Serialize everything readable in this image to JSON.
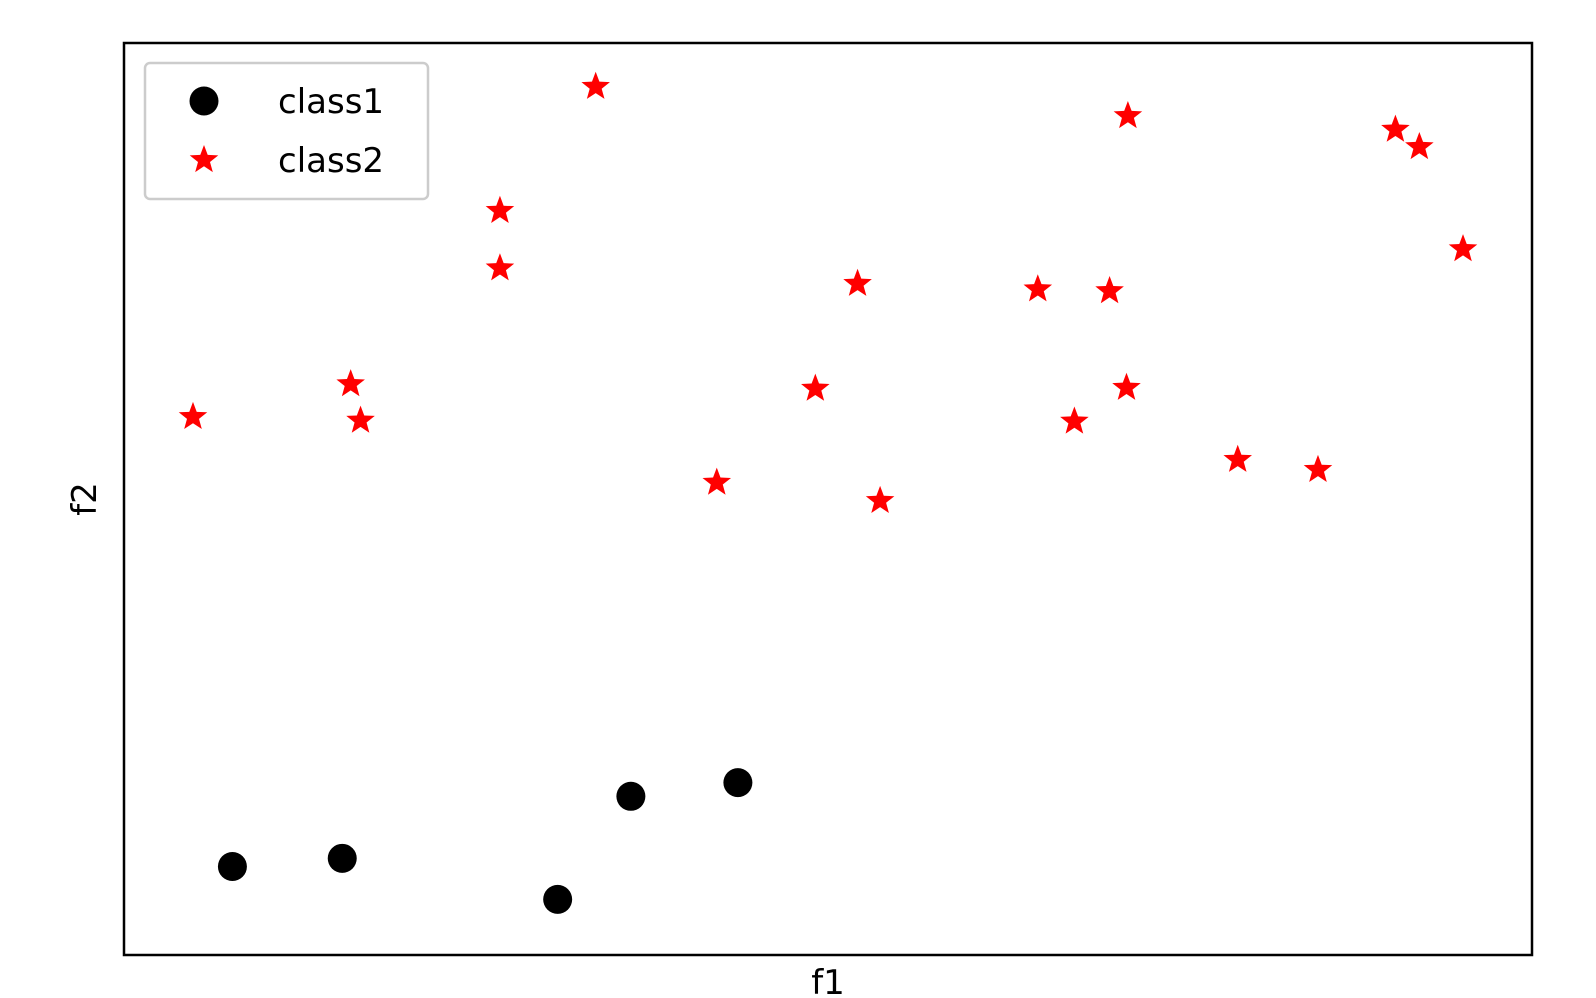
{
  "chart_data": {
    "type": "scatter",
    "title": "",
    "xlabel": "f1",
    "ylabel": "f2",
    "xticks": false,
    "yticks": false,
    "grid": false,
    "legend": "top-left",
    "xlim": [
      0,
      100
    ],
    "ylim": [
      0,
      100
    ],
    "series": [
      {
        "name": "class1",
        "marker": "circle",
        "color": "#000000",
        "points": [
          {
            "x": 7.7,
            "y": 9.7
          },
          {
            "x": 15.5,
            "y": 10.6
          },
          {
            "x": 30.8,
            "y": 6.1
          },
          {
            "x": 36.0,
            "y": 17.4
          },
          {
            "x": 43.6,
            "y": 18.9
          }
        ]
      },
      {
        "name": "class2",
        "marker": "star",
        "color": "#ff0000",
        "points": [
          {
            "x": 4.9,
            "y": 59.0
          },
          {
            "x": 16.1,
            "y": 62.6
          },
          {
            "x": 16.8,
            "y": 58.6
          },
          {
            "x": 26.7,
            "y": 75.3
          },
          {
            "x": 26.7,
            "y": 81.6
          },
          {
            "x": 33.5,
            "y": 95.2
          },
          {
            "x": 42.1,
            "y": 51.8
          },
          {
            "x": 49.1,
            "y": 62.1
          },
          {
            "x": 52.1,
            "y": 73.6
          },
          {
            "x": 53.7,
            "y": 49.8
          },
          {
            "x": 64.9,
            "y": 73.0
          },
          {
            "x": 67.5,
            "y": 58.5
          },
          {
            "x": 70.0,
            "y": 72.8
          },
          {
            "x": 71.2,
            "y": 62.2
          },
          {
            "x": 71.3,
            "y": 92.0
          },
          {
            "x": 79.1,
            "y": 54.3
          },
          {
            "x": 84.8,
            "y": 53.2
          },
          {
            "x": 90.3,
            "y": 90.5
          },
          {
            "x": 92.0,
            "y": 88.6
          },
          {
            "x": 95.1,
            "y": 77.4
          }
        ]
      }
    ]
  }
}
